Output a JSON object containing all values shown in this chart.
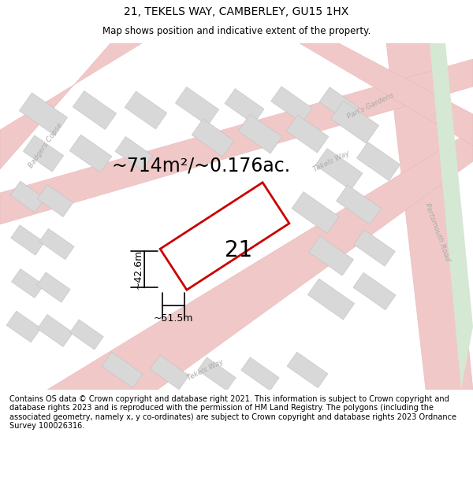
{
  "title": "21, TEKELS WAY, CAMBERLEY, GU15 1HX",
  "subtitle": "Map shows position and indicative extent of the property.",
  "area_label": "~714m²/~0.176ac.",
  "plot_number": "21",
  "width_label": "~51.5m",
  "height_label": "~42.6m",
  "footer": "Contains OS data © Crown copyright and database right 2021. This information is subject to Crown copyright and database rights 2023 and is reproduced with the permission of HM Land Registry. The polygons (including the associated geometry, namely x, y co-ordinates) are subject to Crown copyright and database rights 2023 Ordnance Survey 100026316.",
  "map_bg": "#f0ecec",
  "plot_fill": "#ffffff",
  "plot_edge": "#cc0000",
  "road_color": "#f0c8c8",
  "road_edge": "#e8b0b0",
  "building_fill": "#d8d8d8",
  "building_edge": "#c0c0c0",
  "grass_color": "#d4e8d4",
  "road_label_color": "#aaaaaa",
  "title_fontsize": 10,
  "subtitle_fontsize": 8.5,
  "area_fontsize": 17,
  "plot_number_fontsize": 20,
  "dim_fontsize": 9,
  "road_label_fontsize": 6.5,
  "footer_fontsize": 7
}
